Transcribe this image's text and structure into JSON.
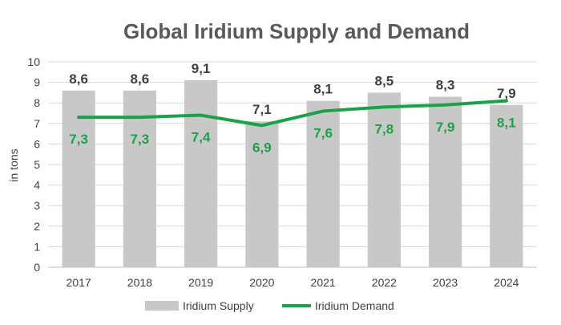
{
  "chart_data": {
    "type": "bar",
    "title": "Global Iridium Supply and Demand",
    "ylabel": "in tons",
    "xlabel": "",
    "categories": [
      "2017",
      "2018",
      "2019",
      "2020",
      "2021",
      "2022",
      "2023",
      "2024"
    ],
    "ylim": [
      0,
      10
    ],
    "yticks": [
      "0",
      "1",
      "2",
      "3",
      "4",
      "5",
      "6",
      "7",
      "8",
      "9",
      "10"
    ],
    "grid": true,
    "legend_position": "bottom",
    "series": [
      {
        "name": "Iridium Supply",
        "type": "bar",
        "color": "#c8c8c8",
        "values": [
          8.6,
          8.6,
          9.1,
          7.1,
          8.1,
          8.5,
          8.3,
          7.9
        ],
        "labels": [
          "8,6",
          "8,6",
          "9,1",
          "7,1",
          "8,1",
          "8,5",
          "8,3",
          "7,9"
        ],
        "label_color": "#404040"
      },
      {
        "name": "Iridium Demand",
        "type": "line",
        "color": "#1aa14a",
        "values": [
          7.3,
          7.3,
          7.4,
          6.9,
          7.6,
          7.8,
          7.9,
          8.1
        ],
        "labels": [
          "7,3",
          "7,3",
          "7,4",
          "6,9",
          "7,6",
          "7,8",
          "7,9",
          "8,1"
        ],
        "label_color": "#1aa14a"
      }
    ]
  }
}
